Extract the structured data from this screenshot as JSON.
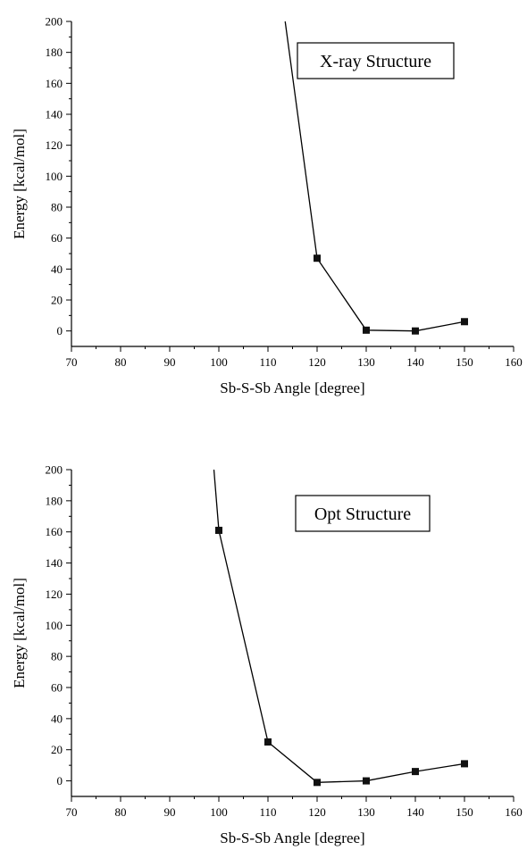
{
  "chart_data": [
    {
      "type": "line",
      "legend": "X-ray Structure",
      "xlabel": "Sb-S-Sb Angle [degree]",
      "ylabel": "Energy [kcal/mol]",
      "xlim": [
        70,
        160
      ],
      "ylim": [
        -10,
        200
      ],
      "xticks": [
        70,
        80,
        90,
        100,
        110,
        120,
        130,
        140,
        150,
        160
      ],
      "yticks": [
        0,
        20,
        40,
        60,
        80,
        100,
        120,
        140,
        160,
        180,
        200
      ],
      "x": [
        113.5,
        120,
        130,
        140,
        150
      ],
      "y": [
        200,
        47,
        0.5,
        0,
        6
      ],
      "markers": [
        false,
        true,
        true,
        true,
        true
      ],
      "legend_position": "top-right"
    },
    {
      "type": "line",
      "legend": "Opt Structure",
      "xlabel": "Sb-S-Sb Angle [degree]",
      "ylabel": "Energy [kcal/mol]",
      "xlim": [
        70,
        160
      ],
      "ylim": [
        -10,
        200
      ],
      "xticks": [
        70,
        80,
        90,
        100,
        110,
        120,
        130,
        140,
        150,
        160
      ],
      "yticks": [
        0,
        20,
        40,
        60,
        80,
        100,
        120,
        140,
        160,
        180,
        200
      ],
      "x": [
        99,
        100,
        110,
        120,
        130,
        140,
        150
      ],
      "y": [
        200,
        161,
        25,
        -1,
        0,
        6,
        11
      ],
      "markers": [
        false,
        true,
        true,
        true,
        true,
        true,
        true
      ],
      "legend_position": "top-right"
    }
  ]
}
